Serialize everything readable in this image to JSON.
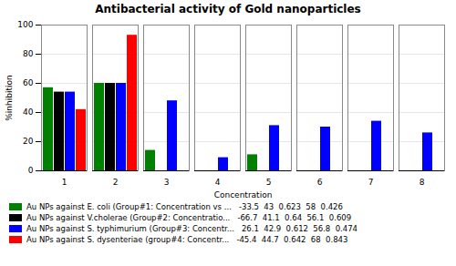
{
  "chart_data": {
    "type": "bar",
    "title": "Antibacterial activity of Gold nanoparticles",
    "xlabel": "Concentration",
    "ylabel": "%inhibition",
    "categories": [
      1,
      2,
      3,
      4,
      5,
      6,
      7,
      8
    ],
    "series": [
      {
        "name": "Au NPs against E. coli (Group#1: Concentration vs ...   -33.5  43  0.623  58  0.426",
        "color": "#008000",
        "values": [
          57,
          60,
          14,
          0,
          11,
          0,
          0,
          0
        ]
      },
      {
        "name": "Au NPs against V.cholerae (Group#2: Concentratio...   -66.7  41.1  0.64  56.1  0.609",
        "color": "#000000",
        "values": [
          54,
          60,
          0,
          0,
          0,
          0,
          0,
          0
        ]
      },
      {
        "name": "Au NPs against S. typhimurium (Group#3: Concentr...   26.1  42.9  0.612  56.8  0.474",
        "color": "#0000ff",
        "values": [
          54,
          60,
          48,
          9,
          31,
          30,
          34,
          26
        ]
      },
      {
        "name": "Au NPs against S. dysenteriae (group#4: Concentr...   -45.4  44.7  0.642  68  0.843",
        "color": "#ff0000",
        "values": [
          42,
          93,
          0,
          0,
          0,
          0,
          0,
          0
        ]
      }
    ],
    "ylim": [
      0,
      100
    ],
    "yticks": [
      0,
      20,
      40,
      60,
      80,
      100
    ],
    "grid": true,
    "legend": "bottom"
  }
}
